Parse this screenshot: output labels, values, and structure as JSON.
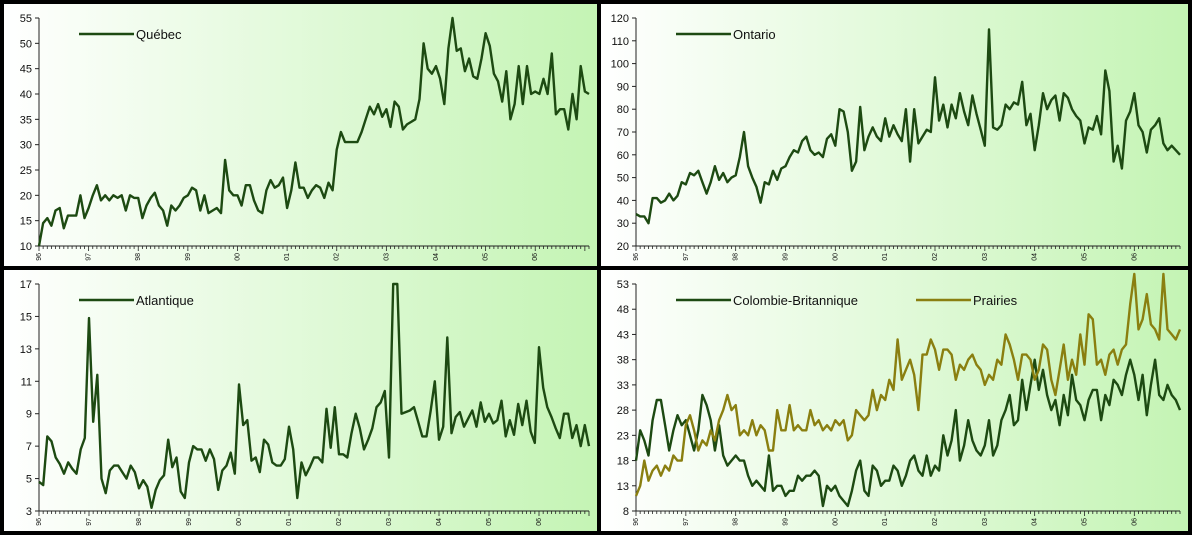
{
  "chart_data": [
    {
      "type": "line",
      "x_ticks": [
        "96",
        "97",
        "98",
        "99",
        "00",
        "01",
        "02",
        "03",
        "04",
        "05",
        "06"
      ],
      "ylim": [
        10,
        55
      ],
      "yticks": [
        10,
        15,
        20,
        25,
        30,
        35,
        40,
        45,
        50,
        55
      ],
      "legend_position": "top-left",
      "series": [
        {
          "name": "Québec",
          "color": "#1d4a12",
          "values": [
            10,
            14.5,
            15.5,
            14,
            17,
            17.5,
            13.5,
            16,
            16,
            16,
            20,
            15.5,
            17.5,
            20,
            22,
            19,
            20,
            19,
            20,
            19.5,
            20,
            17,
            20,
            19.5,
            19.5,
            15.5,
            18,
            19.5,
            20.5,
            18,
            17,
            14,
            18,
            17,
            18,
            19.5,
            20,
            21.5,
            21,
            17,
            20,
            16.5,
            17,
            17.5,
            16.5,
            27,
            21,
            20,
            20,
            18,
            22,
            22,
            19,
            17,
            16.5,
            21,
            23,
            21.5,
            22,
            23.5,
            17.5,
            21,
            26.5,
            21.5,
            21.5,
            19.5,
            21,
            22,
            21.5,
            19.5,
            22.5,
            21,
            29,
            32.5,
            30.5,
            30.5,
            30.5,
            30.5,
            32.5,
            35,
            37.5,
            36,
            38,
            35.5,
            37,
            33.5,
            38.5,
            37.5,
            33,
            34,
            34.5,
            35,
            39,
            50,
            45,
            44,
            45.5,
            43,
            38,
            49,
            55,
            48.5,
            49,
            44.5,
            47,
            43.5,
            43,
            47,
            52,
            49.5,
            44,
            42.5,
            38.5,
            44.5,
            35,
            38,
            45.5,
            38,
            45.5,
            40,
            40.5,
            40,
            43,
            40,
            48,
            36,
            37,
            37,
            33,
            40,
            35,
            45.5,
            40.5,
            40
          ]
        }
      ]
    },
    {
      "type": "line",
      "x_ticks": [
        "96",
        "97",
        "98",
        "99",
        "00",
        "01",
        "02",
        "03",
        "04",
        "05",
        "06"
      ],
      "ylim": [
        20,
        120
      ],
      "yticks": [
        20,
        30,
        40,
        50,
        60,
        70,
        80,
        90,
        100,
        110,
        120
      ],
      "legend_position": "top-left",
      "series": [
        {
          "name": "Ontario",
          "color": "#1d4a12",
          "values": [
            34,
            33,
            33,
            30,
            41,
            41,
            39,
            40,
            43,
            40,
            42,
            48,
            47,
            52,
            51,
            53,
            48,
            43,
            48,
            55,
            49,
            52,
            48,
            50,
            51,
            59,
            70,
            55,
            50,
            46,
            39,
            48,
            47,
            53,
            49,
            54,
            55,
            59,
            62,
            61,
            66,
            68,
            62,
            60,
            61,
            59,
            67,
            69,
            64,
            80,
            79,
            70,
            53,
            57,
            81,
            62,
            68,
            72,
            68,
            66,
            76,
            68,
            73,
            69,
            66,
            80,
            57,
            80,
            65,
            68,
            71,
            70,
            94,
            75,
            82,
            72,
            82,
            76,
            87,
            79,
            73,
            86,
            78,
            71,
            64,
            115,
            72,
            71,
            73,
            82,
            80,
            83,
            82,
            92,
            73,
            78,
            62,
            73,
            87,
            80,
            84,
            86,
            75,
            87,
            85,
            80,
            77,
            75,
            65,
            72,
            71,
            77,
            69,
            97,
            88,
            57,
            64,
            54,
            75,
            79,
            87,
            73,
            70,
            61,
            71,
            73,
            76,
            65,
            62,
            64,
            62,
            60
          ]
        }
      ]
    },
    {
      "type": "line",
      "x_ticks": [
        "96",
        "97",
        "98",
        "99",
        "00",
        "01",
        "02",
        "03",
        "04",
        "05",
        "06"
      ],
      "ylim": [
        3,
        17
      ],
      "yticks": [
        3,
        5,
        7,
        9,
        11,
        13,
        15,
        17
      ],
      "legend_position": "top-left",
      "series": [
        {
          "name": "Atlantique",
          "color": "#1d4a12",
          "values": [
            4.8,
            4.6,
            7.6,
            7.3,
            6.3,
            5.9,
            5.3,
            6,
            5.6,
            5.3,
            6.8,
            7.5,
            14.9,
            8.5,
            11.4,
            5,
            4.1,
            5.5,
            5.8,
            5.8,
            5.4,
            5,
            5.8,
            5.4,
            4.4,
            4.9,
            4.5,
            3.2,
            4.3,
            4.9,
            5.2,
            7.4,
            5.7,
            6.3,
            4.2,
            3.8,
            6,
            7,
            6.8,
            6.8,
            6.1,
            6.8,
            6.2,
            4.3,
            5.5,
            5.8,
            6.6,
            5.3,
            10.8,
            8.3,
            8.6,
            6.1,
            6.3,
            5.4,
            7.4,
            7.1,
            6,
            5.8,
            5.8,
            6.2,
            8.2,
            6.8,
            3.8,
            6,
            5.2,
            5.7,
            6.3,
            6.3,
            6,
            9.3,
            6.9,
            9.4,
            6.5,
            6.5,
            6.3,
            7.8,
            9,
            8.1,
            6.8,
            7.4,
            8.1,
            9.4,
            9.7,
            10.4,
            6.3,
            17,
            17,
            9,
            9.1,
            9.2,
            9.4,
            8.5,
            7.6,
            7.6,
            9.2,
            11,
            7.4,
            8.2,
            13.7,
            7.8,
            8.8,
            9.1,
            8.2,
            8.7,
            9.2,
            8.2,
            9.7,
            8.5,
            9,
            8.4,
            8.6,
            9.8,
            7.6,
            8.6,
            7.7,
            9.6,
            8.3,
            9.8,
            7.9,
            7.2,
            13.1,
            10.6,
            9.4,
            8.8,
            8.1,
            7.5,
            9,
            9,
            7.5,
            8.3,
            7,
            8.3,
            7
          ]
        }
      ]
    },
    {
      "type": "line",
      "x_ticks": [
        "96",
        "97",
        "98",
        "99",
        "00",
        "01",
        "02",
        "03",
        "04",
        "05",
        "06"
      ],
      "ylim": [
        8,
        53
      ],
      "yticks": [
        8,
        13,
        18,
        23,
        28,
        33,
        38,
        43,
        48,
        53
      ],
      "legend_position": "top",
      "series": [
        {
          "name": "Colombie-Britannique",
          "color": "#1d4a12",
          "values": [
            18,
            24,
            22,
            19,
            26,
            30,
            30,
            25,
            20,
            24,
            27,
            25,
            26,
            23,
            20,
            24,
            31,
            29,
            26,
            20,
            25,
            19,
            17,
            18,
            19,
            18,
            18,
            15,
            13,
            14,
            13,
            12,
            19,
            12,
            13,
            13,
            11,
            12,
            12,
            15,
            14,
            15,
            15,
            16,
            15,
            9,
            13,
            12,
            13,
            11,
            10,
            9,
            12,
            16,
            18,
            12,
            11,
            17,
            16,
            13,
            14,
            14,
            17,
            16,
            13,
            15,
            18,
            19,
            16,
            15,
            19,
            15,
            17,
            16,
            23,
            19,
            22,
            28,
            18,
            21,
            26,
            22,
            20,
            19,
            21,
            26,
            19,
            21,
            26,
            28,
            31,
            25,
            26,
            34,
            28,
            33,
            38,
            32,
            36,
            31,
            28,
            30,
            25,
            31,
            27,
            35,
            30,
            29,
            26,
            30,
            32,
            32,
            26,
            31,
            29,
            34,
            33,
            31,
            35,
            38,
            35,
            30,
            35,
            27,
            33,
            38,
            31,
            30,
            33,
            31,
            30,
            28
          ]
        },
        {
          "name": "Prairies",
          "color": "#8a7f10",
          "values": [
            11,
            13,
            18,
            14,
            16,
            17,
            15,
            17,
            16,
            19,
            18,
            18,
            25,
            27,
            24,
            20,
            22,
            21,
            24,
            22,
            26,
            28,
            31,
            28,
            29,
            23,
            24,
            23,
            26,
            23,
            25,
            24,
            20,
            20,
            28,
            24,
            24,
            29,
            24,
            25,
            24,
            24,
            28,
            25,
            26,
            24,
            25,
            24,
            26,
            25,
            26,
            22,
            23,
            28,
            27,
            26,
            27,
            32,
            28,
            31,
            30,
            34,
            32,
            42,
            34,
            36,
            38,
            35,
            28,
            39,
            39,
            42,
            40,
            36,
            40,
            40,
            39,
            34,
            37,
            36,
            38,
            39,
            37,
            36,
            33,
            35,
            34,
            38,
            37,
            43,
            41,
            38,
            34,
            39,
            39,
            38,
            34,
            36,
            41,
            40,
            34,
            31,
            36,
            41,
            34,
            38,
            35,
            43,
            37,
            47,
            46,
            37,
            38,
            35,
            39,
            40,
            37,
            40,
            41,
            49,
            55,
            44,
            46,
            51,
            45,
            44,
            42,
            55,
            44,
            43,
            42,
            44
          ]
        }
      ]
    }
  ]
}
